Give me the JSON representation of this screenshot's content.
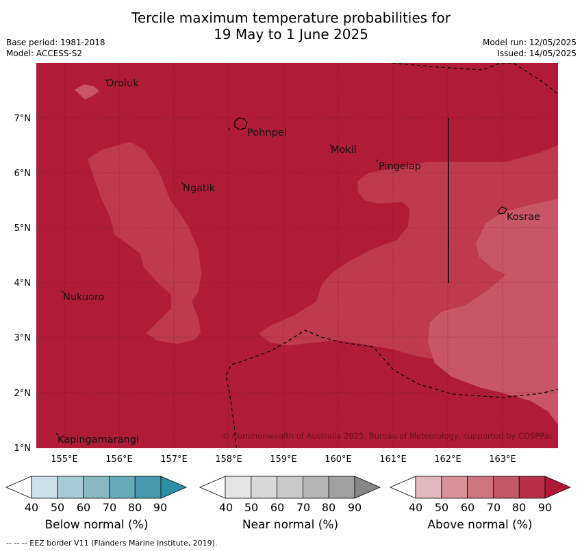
{
  "header": {
    "title_line1": "Tercile maximum temperature probabilities for",
    "title_line2": "19 May to 1 June 2025",
    "base_period": "Base period: 1981-2018",
    "model": "Model: ACCESS-S2",
    "model_run": "Model run: 12/05/2025",
    "issued": "Issued: 14/05/2025"
  },
  "map": {
    "lon_ticks": [
      "155°E",
      "156°E",
      "157°E",
      "158°E",
      "159°E",
      "160°E",
      "161°E",
      "162°E",
      "163°E"
    ],
    "lat_ticks": [
      "7°N",
      "6°N",
      "5°N",
      "4°N",
      "3°N",
      "2°N",
      "1°N"
    ],
    "places": {
      "oroluk": "Oroluk",
      "pohnpei": "Pohnpei",
      "mokil": "Mokil",
      "pingelap": "Pingelap",
      "ngatik": "Ngatik",
      "kosrae": "Kosrae",
      "nukuoro": "Nukuoro",
      "kapingamarangi": "Kapingamarangi"
    },
    "copyright": "© Commonwealth of Australia 2025, Bureau of Meteorology, supported by COSPPac",
    "colors": {
      "above_80_90": "#b01c38",
      "above_70_80": "#bf3a4f",
      "above_60_70": "#c95667"
    }
  },
  "colorbars": [
    {
      "id": "below",
      "label": "Below normal (%)",
      "ticks": [
        "40",
        "50",
        "60",
        "70",
        "80",
        "90"
      ],
      "colors": [
        "#ffffff",
        "#cbe3e8",
        "#a7cbd2",
        "#8ab8c1",
        "#66aab9",
        "#4899ad",
        "#2b8ea6"
      ]
    },
    {
      "id": "near",
      "label": "Near normal (%)",
      "ticks": [
        "40",
        "50",
        "60",
        "70",
        "80",
        "90"
      ],
      "colors": [
        "#ffffff",
        "#e6e6e6",
        "#d8d8d8",
        "#c9c9c9",
        "#b5b5b5",
        "#a1a1a1",
        "#878787"
      ]
    },
    {
      "id": "above",
      "label": "Above normal (%)",
      "ticks": [
        "40",
        "50",
        "60",
        "70",
        "80",
        "90"
      ],
      "colors": [
        "#ffffff",
        "#e2b8bf",
        "#d6919b",
        "#cc7480",
        "#c55768",
        "#b92f4a",
        "#b0183a"
      ]
    }
  ],
  "footer": "--  --  -- EEZ border V11 (Flanders Marine Institute, 2019)."
}
